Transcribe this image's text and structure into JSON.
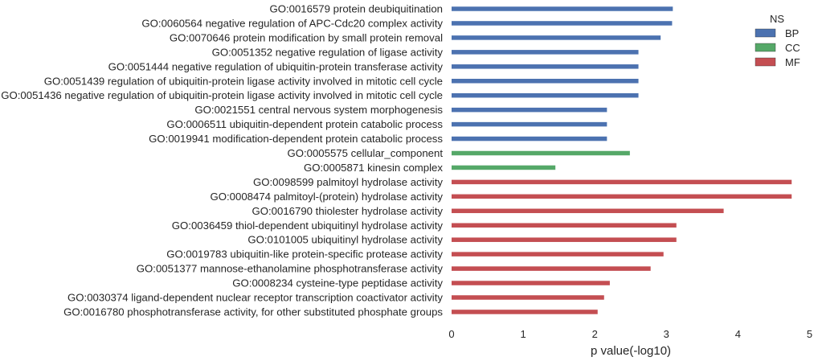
{
  "chart_data": {
    "type": "bar",
    "orientation": "horizontal",
    "xlabel": "p value(-log10)",
    "ylabel": "",
    "title": "",
    "xlim": [
      0,
      5
    ],
    "xticks": [
      "0",
      "1",
      "2",
      "3",
      "4",
      "5"
    ],
    "grid": false,
    "legend": {
      "title": "NS",
      "placement": "top-right",
      "entries": [
        {
          "name": "BP",
          "color": "#4c72b0"
        },
        {
          "name": "CC",
          "color": "#55a868"
        },
        {
          "name": "MF",
          "color": "#c44e52"
        }
      ]
    },
    "bars": [
      {
        "label": "GO:0016579 protein deubiquitination",
        "ns": "BP",
        "value": 3.09
      },
      {
        "label": "GO:0060564 negative regulation of APC-Cdc20 complex activity",
        "ns": "BP",
        "value": 3.08
      },
      {
        "label": "GO:0070646 protein modification by small protein removal",
        "ns": "BP",
        "value": 2.92
      },
      {
        "label": "GO:0051352 negative regulation of ligase activity",
        "ns": "BP",
        "value": 2.61
      },
      {
        "label": "GO:0051444 negative regulation of ubiquitin-protein transferase activity",
        "ns": "BP",
        "value": 2.61
      },
      {
        "label": "GO:0051439 regulation of ubiquitin-protein ligase activity involved in mitotic cell cycle",
        "ns": "BP",
        "value": 2.61
      },
      {
        "label": "GO:0051436 negative regulation of ubiquitin-protein ligase activity involved in mitotic cell cycle",
        "ns": "BP",
        "value": 2.61
      },
      {
        "label": "GO:0021551 central nervous system morphogenesis",
        "ns": "BP",
        "value": 2.17
      },
      {
        "label": "GO:0006511 ubiquitin-dependent protein catabolic process",
        "ns": "BP",
        "value": 2.17
      },
      {
        "label": "GO:0019941 modification-dependent protein catabolic process",
        "ns": "BP",
        "value": 2.17
      },
      {
        "label": "GO:0005575 cellular_component",
        "ns": "CC",
        "value": 2.49
      },
      {
        "label": "GO:0005871 kinesin complex",
        "ns": "CC",
        "value": 1.45
      },
      {
        "label": "GO:0098599 palmitoyl hydrolase activity",
        "ns": "MF",
        "value": 4.75
      },
      {
        "label": "GO:0008474 palmitoyl-(protein) hydrolase activity",
        "ns": "MF",
        "value": 4.75
      },
      {
        "label": "GO:0016790 thiolester hydrolase activity",
        "ns": "MF",
        "value": 3.8
      },
      {
        "label": "GO:0036459 thiol-dependent ubiquitinyl hydrolase activity",
        "ns": "MF",
        "value": 3.14
      },
      {
        "label": "GO:0101005 ubiquitinyl hydrolase activity",
        "ns": "MF",
        "value": 3.14
      },
      {
        "label": "GO:0019783 ubiquitin-like protein-specific protease activity",
        "ns": "MF",
        "value": 2.96
      },
      {
        "label": "GO:0051377 mannose-ethanolamine phosphotransferase activity",
        "ns": "MF",
        "value": 2.78
      },
      {
        "label": "GO:0008234 cysteine-type peptidase activity",
        "ns": "MF",
        "value": 2.21
      },
      {
        "label": "GO:0030374 ligand-dependent nuclear receptor transcription coactivator activity",
        "ns": "MF",
        "value": 2.13
      },
      {
        "label": "GO:0016780 phosphotransferase activity, for other substituted phosphate groups",
        "ns": "MF",
        "value": 2.04
      }
    ]
  }
}
